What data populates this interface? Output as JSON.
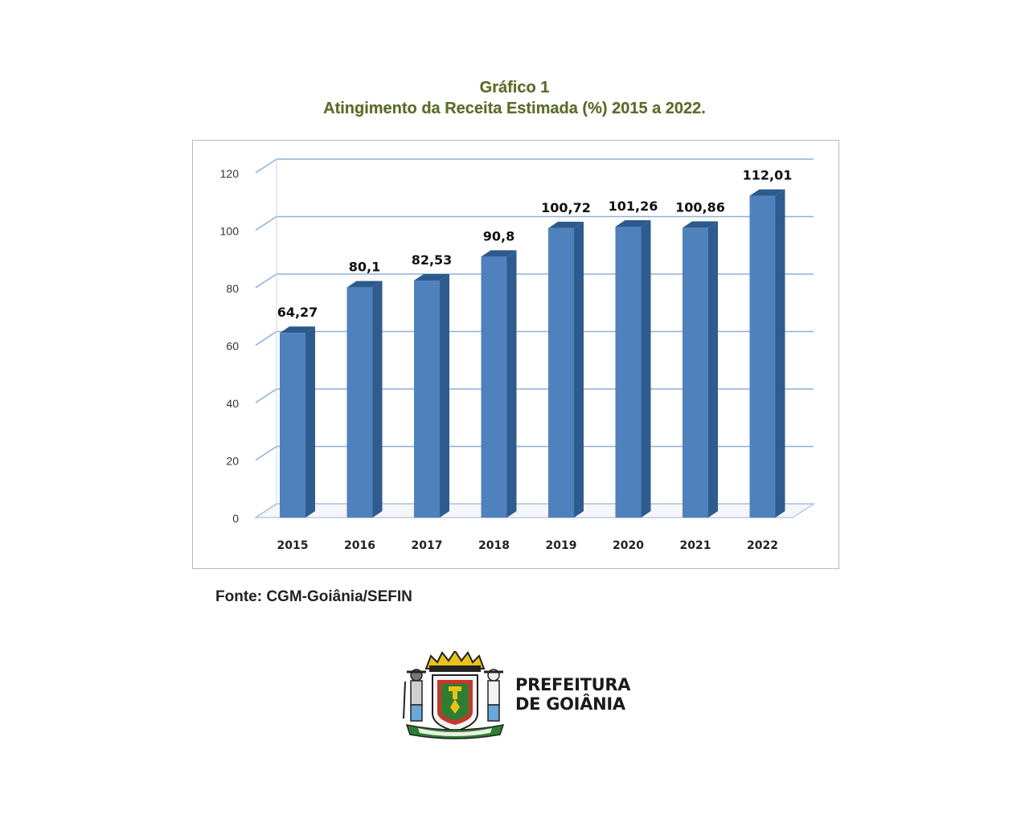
{
  "header": {
    "title_line1": "Gráfico 1",
    "title_line2": "Atingimento da Receita Estimada (%) 2015 a 2022."
  },
  "chart_data": {
    "type": "bar",
    "categories": [
      "2015",
      "2016",
      "2017",
      "2018",
      "2019",
      "2020",
      "2021",
      "2022"
    ],
    "values": [
      64.27,
      80.1,
      82.53,
      90.8,
      100.72,
      101.26,
      100.86,
      112.01
    ],
    "data_labels": [
      "64,27",
      "80,1",
      "82,53",
      "90,8",
      "100,72",
      "101,26",
      "100,86",
      "112,01"
    ],
    "y_ticks": [
      "0",
      "20",
      "40",
      "60",
      "80",
      "100",
      "120"
    ],
    "ylim": [
      0,
      120
    ],
    "grid": true,
    "bar_color": "#4f81bd",
    "legend": "none",
    "style": "3d-column"
  },
  "source": "Fonte: CGM-Goiânia/SEFIN",
  "logo": {
    "line1": "PREFEITURA",
    "line2": "DE GOIÂNIA",
    "motto": "PELA GRANDEZA DA PÁTRIA"
  }
}
